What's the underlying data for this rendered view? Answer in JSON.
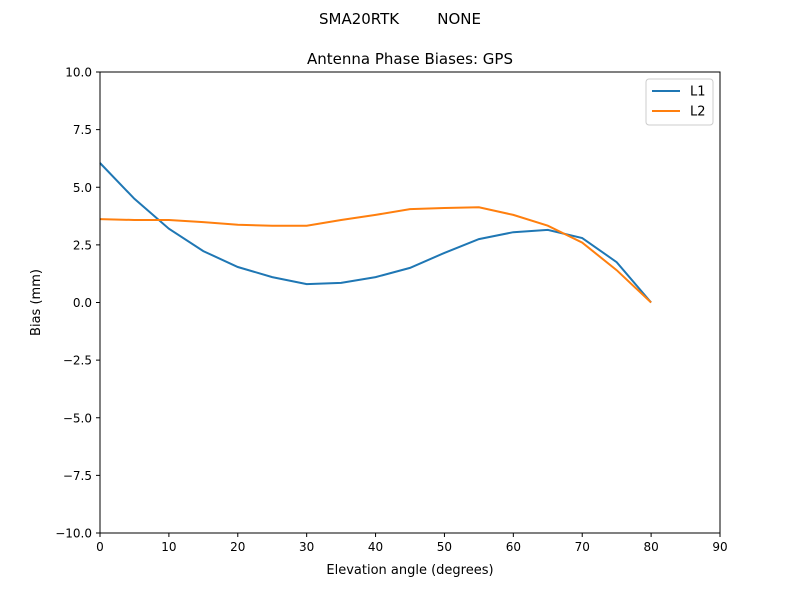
{
  "chart_data": {
    "type": "line",
    "suptitle": "SMA20RTK        NONE",
    "title": "Antenna Phase Biases: GPS",
    "xlabel": "Elevation angle (degrees)",
    "ylabel": "Bias (mm)",
    "xlim": [
      0,
      90
    ],
    "ylim": [
      -10,
      10
    ],
    "xticks": [
      0,
      10,
      20,
      30,
      40,
      50,
      60,
      70,
      80,
      90
    ],
    "yticks": [
      -10.0,
      -7.5,
      -5.0,
      -2.5,
      0.0,
      2.5,
      5.0,
      7.5,
      10.0
    ],
    "xtick_labels": [
      "0",
      "10",
      "20",
      "30",
      "40",
      "50",
      "60",
      "70",
      "80",
      "90"
    ],
    "ytick_labels": [
      "−10.0",
      "−7.5",
      "−5.0",
      "−2.5",
      "0.0",
      "2.5",
      "5.0",
      "7.5",
      "10.0"
    ],
    "grid": false,
    "legend_position": "top-right",
    "x": [
      0,
      5,
      10,
      15,
      20,
      25,
      30,
      35,
      40,
      45,
      50,
      55,
      60,
      65,
      70,
      75,
      80
    ],
    "series": [
      {
        "name": "L1",
        "color": "#1f77b4",
        "values": [
          6.05,
          4.5,
          3.2,
          2.23,
          1.54,
          1.1,
          0.8,
          0.85,
          1.1,
          1.5,
          2.15,
          2.75,
          3.05,
          3.15,
          2.8,
          1.75,
          0.0
        ]
      },
      {
        "name": "L2",
        "color": "#ff7f0e",
        "values": [
          3.62,
          3.58,
          3.58,
          3.49,
          3.37,
          3.33,
          3.33,
          3.58,
          3.8,
          4.05,
          4.1,
          4.13,
          3.8,
          3.33,
          2.6,
          1.4,
          0.0
        ]
      }
    ]
  }
}
